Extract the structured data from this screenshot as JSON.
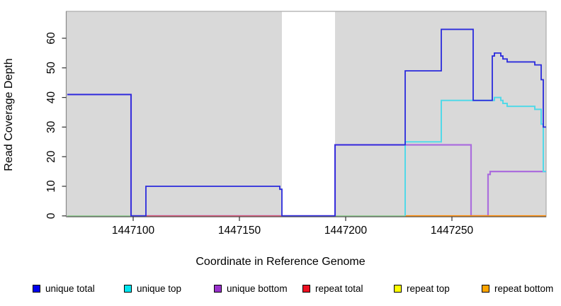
{
  "chart_data": {
    "type": "line",
    "subtype": "step-coverage-plot",
    "title": "",
    "xlabel": "Coordinate in Reference Genome",
    "ylabel": "Read Coverage Depth",
    "x_ticks": [
      1447100,
      1447150,
      1447200,
      1447250
    ],
    "y_ticks": [
      0,
      10,
      20,
      30,
      40,
      50,
      60
    ],
    "x_range": [
      1447069,
      1447294
    ],
    "y_range": [
      0,
      69
    ],
    "grid": "off",
    "plot_bg_color": "#d9d9d9",
    "gap_region": {
      "start": 1447170,
      "end": 1447195,
      "color": "#ffffff"
    },
    "series": [
      {
        "name": "unique total",
        "line_color": "#2b2bdc",
        "z": 7,
        "lw": 1.8,
        "start_at_zero": false,
        "steps": [
          [
            1447069,
            41
          ],
          [
            1447099,
            0
          ],
          [
            1447106,
            10
          ],
          [
            1447169,
            9
          ],
          [
            1447170,
            0
          ],
          [
            1447195,
            24
          ],
          [
            1447228,
            49
          ],
          [
            1447245,
            63
          ],
          [
            1447260,
            39
          ],
          [
            1447269,
            54
          ],
          [
            1447270,
            55
          ],
          [
            1447273,
            54
          ],
          [
            1447274,
            53
          ],
          [
            1447276,
            52
          ],
          [
            1447289,
            51
          ],
          [
            1447292,
            46
          ],
          [
            1447293,
            30
          ]
        ],
        "end": 1447294.3
      },
      {
        "name": "unique top",
        "line_color": "#52d9e8",
        "z": 6,
        "lw": 2.0,
        "start_at_zero": true,
        "steps": [
          [
            1447228,
            25
          ],
          [
            1447245,
            39
          ],
          [
            1447270,
            40
          ],
          [
            1447273,
            39
          ],
          [
            1447274,
            38
          ],
          [
            1447276,
            37
          ],
          [
            1447289,
            36
          ],
          [
            1447292,
            31
          ],
          [
            1447293,
            15
          ]
        ],
        "end": 1447294.3
      },
      {
        "name": "unique bottom",
        "line_color": "#ab6edd",
        "z": 3,
        "lw": 2.2,
        "start_at_zero": false,
        "steps": [
          [
            1447069,
            41
          ],
          [
            1447099,
            0
          ],
          [
            1447195,
            24
          ],
          [
            1447259,
            0
          ],
          [
            1447267,
            14
          ],
          [
            1447268,
            15
          ]
        ],
        "end": 1447294.3
      },
      {
        "name": "repeat total",
        "line_color": "#dd5666",
        "z": 4,
        "lw": 1.4,
        "start_at_zero": false,
        "steps": [
          [
            1447099,
            0
          ]
        ],
        "end": 1447195
      },
      {
        "name": "repeat top",
        "line_color": "#e8e800",
        "z": 1,
        "lw": 1.4,
        "start_at_zero": false,
        "steps": [
          [
            1447099,
            0
          ]
        ],
        "end": 1447195
      },
      {
        "name": "repeat bottom",
        "line_color": "#ff8c05",
        "z": 5,
        "lw": 1.8,
        "start_at_zero": false,
        "steps": [
          [
            1447228,
            0
          ]
        ],
        "end": 1447294.3
      }
    ],
    "overlap_zero_lines": {
      "color": "#8ccd8c",
      "lw": 1.4,
      "z": 2,
      "segments": [
        [
          1447069,
          1447099
        ],
        [
          1447195,
          1447228
        ]
      ]
    }
  },
  "legend": {
    "items": [
      {
        "label": "unique total",
        "swatch_color": "#0000ee"
      },
      {
        "label": "unique top",
        "swatch_color": "#00e6f0"
      },
      {
        "label": "unique bottom",
        "swatch_color": "#9932cc"
      },
      {
        "label": "repeat total",
        "swatch_color": "#ee1122"
      },
      {
        "label": "repeat top",
        "swatch_color": "#ffff00"
      },
      {
        "label": "repeat bottom",
        "swatch_color": "#ffa500"
      }
    ]
  }
}
